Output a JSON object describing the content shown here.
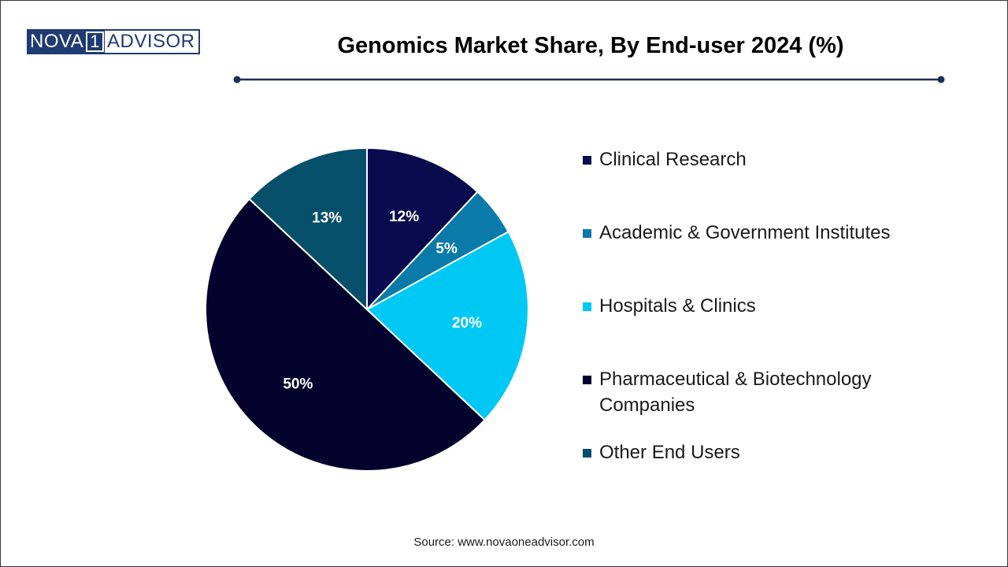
{
  "logo": {
    "left": "NOVA",
    "mark": "1",
    "right": "ADVISOR"
  },
  "source": "Source: www.novaoneadvisor.com",
  "chart_data": {
    "type": "pie",
    "title": "Genomics Market Share, By End-user 2024 (%)",
    "start_angle_deg": 0,
    "direction": "clockwise",
    "slices": [
      {
        "label": "Clinical Research",
        "value": 12,
        "display": "12%",
        "color": "#0a0a4f"
      },
      {
        "label": "Academic & Government Institutes",
        "value": 5,
        "display": "5%",
        "color": "#0a7aa8"
      },
      {
        "label": "Hospitals & Clinics",
        "value": 20,
        "display": "20%",
        "color": "#00c8f5"
      },
      {
        "label": "Pharmaceutical & Biotechnology Companies",
        "value": 50,
        "display": "50%",
        "color": "#03032e"
      },
      {
        "label": "Other End Users",
        "value": 13,
        "display": "13%",
        "color": "#064f6b"
      }
    ],
    "legend_position": "right",
    "slice_border_color": "#ffffff"
  }
}
